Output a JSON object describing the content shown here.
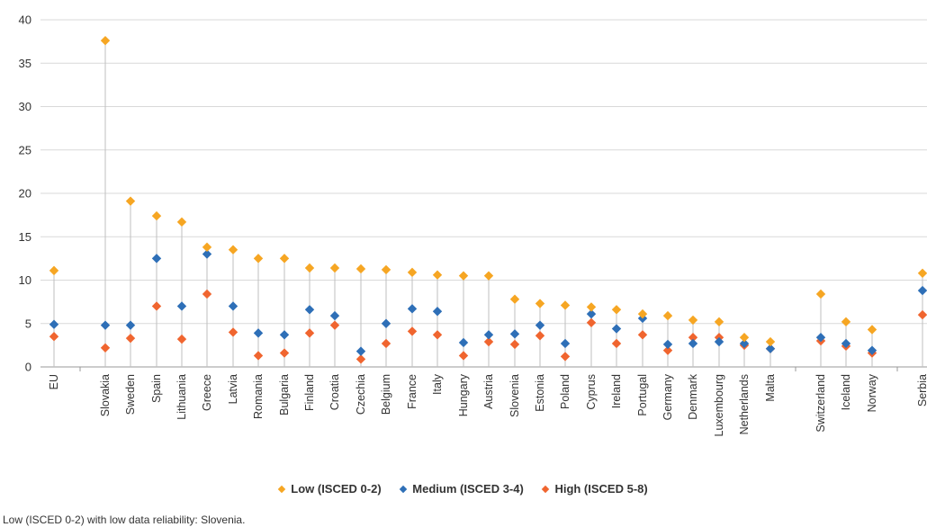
{
  "chart_data": {
    "type": "scatter",
    "categories": [
      "EU",
      "Slovakia",
      "Sweden",
      "Spain",
      "Lithuania",
      "Greece",
      "Latvia",
      "Romania",
      "Bulgaria",
      "Finland",
      "Croatia",
      "Czechia",
      "Belgium",
      "France",
      "Italy",
      "Hungary",
      "Austria",
      "Slovenia",
      "Estonia",
      "Poland",
      "Cyprus",
      "Ireland",
      "Portugal",
      "Germany",
      "Denmark",
      "Luxembourg",
      "Netherlands",
      "Malta",
      "Switzerland",
      "Iceland",
      "Norway",
      "Serbia"
    ],
    "series": [
      {
        "name": "Low (ISCED 0-2)",
        "color": "#F6A623",
        "values": [
          11.1,
          37.6,
          19.1,
          17.4,
          16.7,
          13.8,
          13.5,
          12.5,
          12.5,
          11.4,
          11.4,
          11.3,
          11.2,
          10.9,
          10.6,
          10.5,
          10.5,
          7.8,
          7.3,
          7.1,
          6.9,
          6.6,
          6.1,
          5.9,
          5.4,
          5.2,
          3.4,
          2.9,
          8.4,
          5.2,
          4.3,
          10.8
        ]
      },
      {
        "name": "Medium (ISCED 3-4)",
        "color": "#2E6FB7",
        "values": [
          4.9,
          4.8,
          4.8,
          12.5,
          7.0,
          13.0,
          7.0,
          3.9,
          3.7,
          6.6,
          5.9,
          1.8,
          5.0,
          6.7,
          6.4,
          2.8,
          3.7,
          3.8,
          4.8,
          2.7,
          6.1,
          4.4,
          5.6,
          2.6,
          2.7,
          2.9,
          2.7,
          2.1,
          3.4,
          2.7,
          1.9,
          8.8
        ]
      },
      {
        "name": "High (ISCED 5-8)",
        "color": "#F0652F",
        "values": [
          3.5,
          2.2,
          3.3,
          7.0,
          3.2,
          8.4,
          4.0,
          1.3,
          1.6,
          3.9,
          4.8,
          0.9,
          2.7,
          4.1,
          3.7,
          1.3,
          2.9,
          2.6,
          3.6,
          1.2,
          5.1,
          2.7,
          3.7,
          1.9,
          3.4,
          3.4,
          2.5,
          2.1,
          3.0,
          2.4,
          1.6,
          6.0
        ]
      }
    ],
    "ylim": [
      0,
      40
    ],
    "yticks": [
      0,
      5,
      10,
      15,
      20,
      25,
      30,
      35,
      40
    ],
    "grid": true,
    "legend_position": "bottom",
    "title": "",
    "xlabel": "",
    "ylabel": ""
  },
  "legend": {
    "low": "Low (ISCED 0-2)",
    "medium": "Medium (ISCED 3-4)",
    "high": "High (ISCED 5-8)"
  },
  "note": "Low (ISCED 0-2) with low data reliability: Slovenia."
}
